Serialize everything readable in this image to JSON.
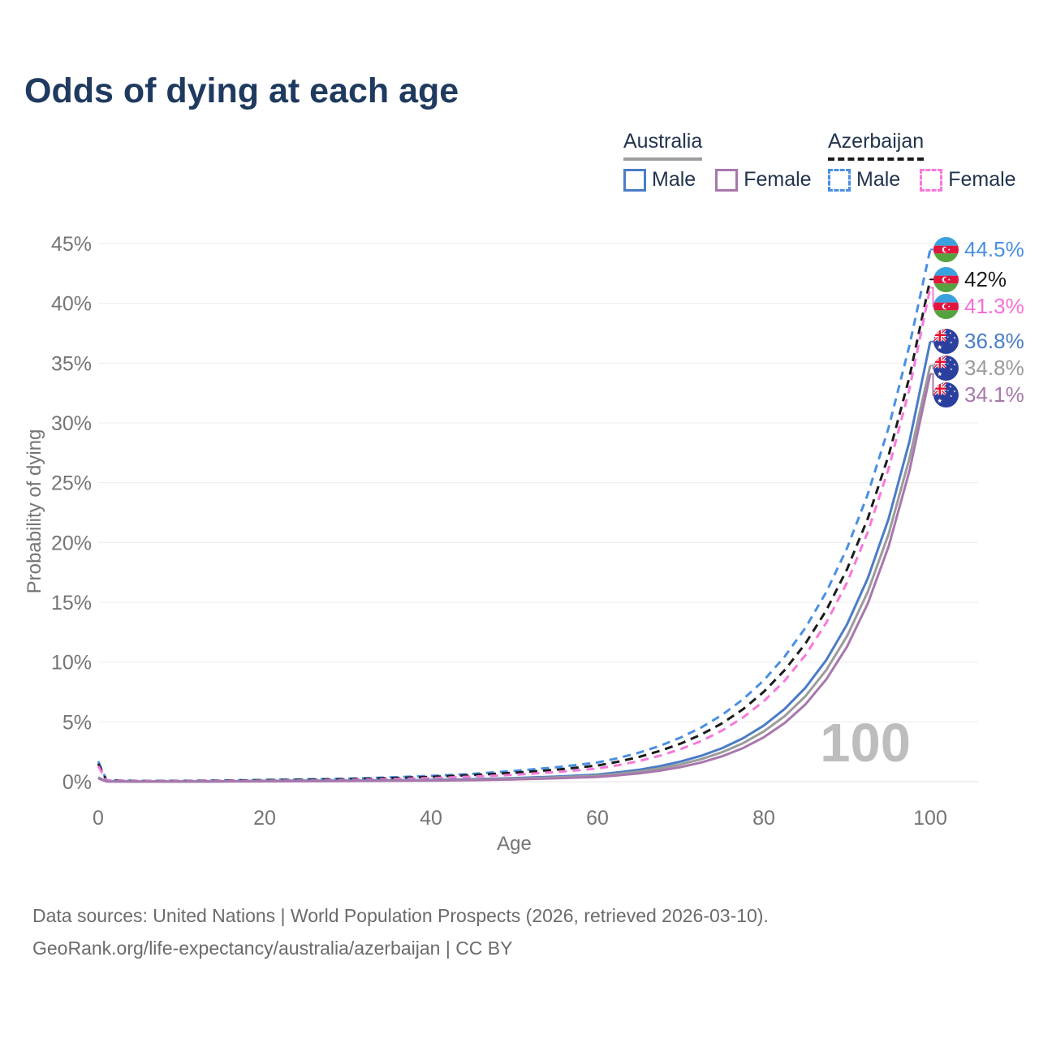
{
  "title": "Odds of dying at each age",
  "legend": {
    "groups": [
      {
        "country": "Australia",
        "style": "solid",
        "underline_color": "#9e9e9e",
        "items": [
          {
            "label": "Male",
            "color": "#4a7cc7"
          },
          {
            "label": "Female",
            "color": "#a877ad"
          }
        ]
      },
      {
        "country": "Azerbaijan",
        "style": "dashed",
        "underline_color": "#1c1c1c",
        "items": [
          {
            "label": "Male",
            "color": "#4a8fe2"
          },
          {
            "label": "Female",
            "color": "#f878da"
          }
        ]
      }
    ]
  },
  "chart_data": {
    "type": "line",
    "title": "Odds of dying at each age",
    "xlabel": "Age",
    "ylabel": "Probability of dying",
    "xlim": [
      0,
      100
    ],
    "ylim": [
      0,
      45
    ],
    "x_ticks": [
      0,
      20,
      40,
      60,
      80,
      100
    ],
    "y_ticks": [
      0,
      5,
      10,
      15,
      20,
      25,
      30,
      35,
      40,
      45
    ],
    "y_tick_suffix": "%",
    "grid": true,
    "legend_position": "top-right",
    "watermark": "100",
    "x": [
      0,
      1,
      5,
      10,
      15,
      20,
      25,
      30,
      35,
      40,
      45,
      50,
      55,
      60,
      62.5,
      65,
      67.5,
      70,
      72.5,
      75,
      77.5,
      80,
      82.5,
      85,
      87.5,
      90,
      92.5,
      95,
      97.5,
      100
    ],
    "series": [
      {
        "name": "Azerbaijan Male",
        "country": "Azerbaijan",
        "sex": "Male",
        "color": "#4a8fe2",
        "dash": true,
        "end_label": "44.5%",
        "label_color": "#4a8fe2",
        "flag": "az",
        "values": [
          1.7,
          0.12,
          0.06,
          0.07,
          0.1,
          0.15,
          0.2,
          0.26,
          0.35,
          0.48,
          0.65,
          0.9,
          1.2,
          1.6,
          1.97,
          2.43,
          2.99,
          3.69,
          4.54,
          5.59,
          6.89,
          8.48,
          10.45,
          12.87,
          15.85,
          19.52,
          24.04,
          29.61,
          36.47,
          44.5
        ]
      },
      {
        "name": "Azerbaijan",
        "country": "Azerbaijan",
        "sex": "Total",
        "color": "#1c1c1c",
        "dash": true,
        "end_label": "42%",
        "label_color": "#1c1c1c",
        "flag": "az",
        "values": [
          1.5,
          0.1,
          0.05,
          0.06,
          0.08,
          0.12,
          0.16,
          0.21,
          0.29,
          0.4,
          0.55,
          0.75,
          1.0,
          1.35,
          1.67,
          2.07,
          2.57,
          3.18,
          3.95,
          4.89,
          6.06,
          7.52,
          9.32,
          11.55,
          14.32,
          17.76,
          22.01,
          27.29,
          33.84,
          42.0
        ]
      },
      {
        "name": "Azerbaijan Female",
        "country": "Azerbaijan",
        "sex": "Female",
        "color": "#f878da",
        "dash": true,
        "end_label": "41.3%",
        "label_color": "#f86fd7",
        "flag": "az",
        "values": [
          1.3,
          0.09,
          0.04,
          0.05,
          0.06,
          0.08,
          0.11,
          0.15,
          0.21,
          0.3,
          0.42,
          0.58,
          0.8,
          1.1,
          1.38,
          1.73,
          2.17,
          2.72,
          3.41,
          4.28,
          5.37,
          6.73,
          8.44,
          10.59,
          13.28,
          16.65,
          20.88,
          26.19,
          32.84,
          41.3
        ]
      },
      {
        "name": "Australia Male",
        "country": "Australia",
        "sex": "Male",
        "color": "#4a7cc7",
        "dash": false,
        "end_label": "36.8%",
        "label_color": "#4a7cc7",
        "flag": "au",
        "values": [
          0.35,
          0.03,
          0.01,
          0.01,
          0.03,
          0.06,
          0.08,
          0.09,
          0.11,
          0.15,
          0.21,
          0.3,
          0.43,
          0.6,
          0.78,
          1.0,
          1.3,
          1.68,
          2.17,
          2.81,
          3.63,
          4.7,
          6.08,
          7.86,
          10.17,
          13.15,
          17.01,
          22.0,
          28.45,
          36.8
        ]
      },
      {
        "name": "Australia",
        "country": "Australia",
        "sex": "Total",
        "color": "#9b9b9b",
        "dash": false,
        "end_label": "34.8%",
        "label_color": "#9b9b9b",
        "flag": "au",
        "values": [
          0.32,
          0.025,
          0.01,
          0.01,
          0.025,
          0.05,
          0.06,
          0.07,
          0.09,
          0.12,
          0.17,
          0.25,
          0.36,
          0.5,
          0.65,
          0.85,
          1.11,
          1.45,
          1.89,
          2.47,
          3.22,
          4.2,
          5.48,
          7.15,
          9.33,
          12.17,
          15.88,
          20.72,
          27.03,
          34.8
        ]
      },
      {
        "name": "Australia Female",
        "country": "Australia",
        "sex": "Female",
        "color": "#a877ad",
        "dash": false,
        "end_label": "34.1%",
        "label_color": "#a877ad",
        "flag": "au",
        "values": [
          0.28,
          0.02,
          0.01,
          0.01,
          0.02,
          0.03,
          0.04,
          0.05,
          0.07,
          0.09,
          0.13,
          0.19,
          0.28,
          0.4,
          0.53,
          0.7,
          0.92,
          1.22,
          1.61,
          2.13,
          2.81,
          3.71,
          4.9,
          6.47,
          8.55,
          11.29,
          14.9,
          19.68,
          25.99,
          34.1
        ]
      }
    ],
    "colors": {
      "title": "#1f3a5f",
      "axis_text": "#757575",
      "grid": "#ececec",
      "grid_zero": "#e2e2e2",
      "watermark": "#bdbdbd",
      "footer_text": "#6b6b6b"
    }
  },
  "footer": {
    "line1": "Data sources: United Nations | World Population Prospects (2026, retrieved 2026-03-10).",
    "line2": "GeoRank.org/life-expectancy/australia/azerbaijan | CC BY"
  }
}
